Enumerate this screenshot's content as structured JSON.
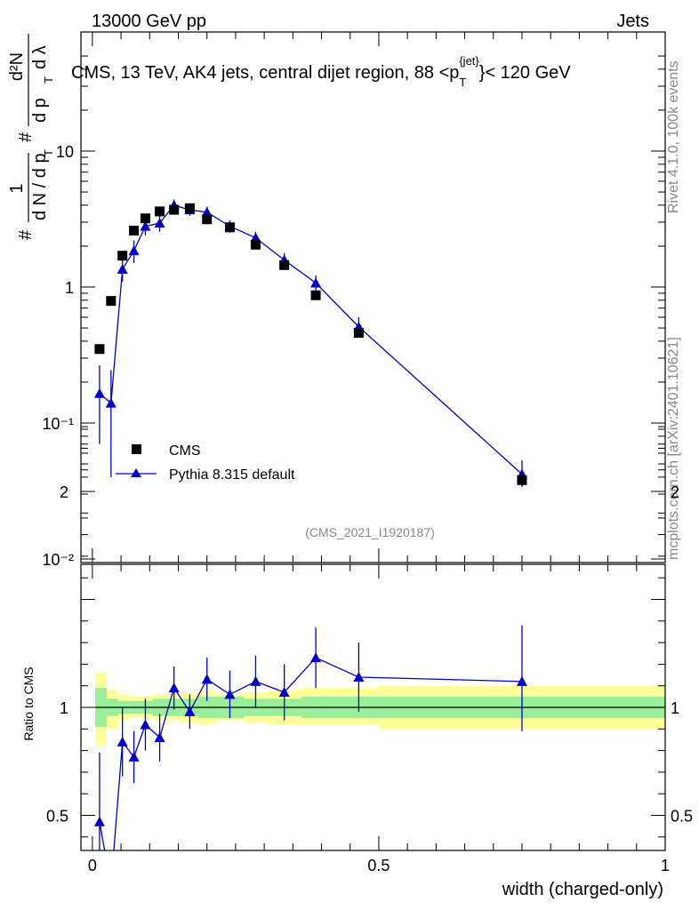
{
  "header": {
    "left": "13000 GeV pp",
    "right": "Jets"
  },
  "side": {
    "rivet": "Rivet 4.1.0,  100k events",
    "mcplots": "mcplots.cern.ch [arXiv:2401.10621]"
  },
  "colors": {
    "data": "#000000",
    "mc": "#0000cc",
    "band_inner": "#99ee99",
    "band_outer": "#ffff99"
  },
  "chart_data": [
    {
      "type": "scatter",
      "title": "CMS, 13 TeV, AK4 jets, central dijet region, 88 <p_T^{jet}> < 120 GeV",
      "title_parts": {
        "main": "CMS, 13 TeV, AK4 jets, central dijet region, 88 <p",
        "sub": "T",
        "sup": "{jet}",
        "end": "}< 120 GeV"
      },
      "ylabel": "1/dN/dp_T d²N/dp_T dλ",
      "ylabel_parts": {
        "hash": "#",
        "one": "1",
        "dN": "d N / d p",
        "T": "T",
        "d2N": "d²N",
        "dp": "d p",
        "dl": "d λ"
      },
      "yscale": "log",
      "ylim": [
        0.01,
        50
      ],
      "xlim": [
        -0.02,
        1.0
      ],
      "ytick_labels": [
        "10⁻²",
        "10⁻¹",
        "1",
        "10"
      ],
      "ytick_values": [
        0.01,
        0.1,
        1,
        10
      ],
      "watermark": "(CMS_2021_I1920187)",
      "legend": {
        "placement": "lower-left",
        "entries": [
          "CMS",
          "Pythia 8.315 default"
        ]
      },
      "series": [
        {
          "name": "CMS",
          "marker": "square",
          "x": [
            0.0125,
            0.0325,
            0.0525,
            0.0725,
            0.0925,
            0.1175,
            0.1425,
            0.17,
            0.2,
            0.24,
            0.285,
            0.335,
            0.39,
            0.465,
            0.75
          ],
          "y": [
            0.35,
            0.79,
            1.7,
            2.6,
            3.2,
            3.6,
            3.7,
            3.8,
            3.15,
            2.75,
            2.05,
            1.45,
            0.87,
            0.46,
            0.038
          ],
          "err": [
            0.02,
            0.03,
            0.08,
            0.1,
            0.12,
            0.14,
            0.14,
            0.15,
            0.12,
            0.1,
            0.08,
            0.06,
            0.04,
            0.025,
            0.004
          ]
        },
        {
          "name": "Pythia 8.315 default",
          "marker": "triangle",
          "x": [
            0.0125,
            0.0325,
            0.0525,
            0.0725,
            0.0925,
            0.1175,
            0.1425,
            0.17,
            0.2,
            0.24,
            0.285,
            0.335,
            0.39,
            0.465,
            0.75
          ],
          "y": [
            0.165,
            0.14,
            1.35,
            1.85,
            2.8,
            2.95,
            4.0,
            3.7,
            3.55,
            2.8,
            2.3,
            1.58,
            1.07,
            0.51,
            0.042
          ],
          "err_lo": [
            0.095,
            0.1,
            0.25,
            0.35,
            0.4,
            0.4,
            0.4,
            0.35,
            0.35,
            0.3,
            0.25,
            0.2,
            0.15,
            0.08,
            0.008
          ],
          "err_hi": [
            0.1,
            0.105,
            0.25,
            0.35,
            0.4,
            0.4,
            0.4,
            0.35,
            0.35,
            0.3,
            0.25,
            0.2,
            0.15,
            0.09,
            0.011
          ]
        }
      ]
    },
    {
      "type": "scatter",
      "ylabel": "Ratio to CMS",
      "xlabel": "width (charged-only)",
      "ylim": [
        0.35,
        2.35
      ],
      "xlim": [
        -0.02,
        1.0
      ],
      "ytick_labels": [
        "0.5",
        "1",
        "2"
      ],
      "ytick_values": [
        0.5,
        1,
        2
      ],
      "xtick_labels": [
        "0",
        "0.5",
        "1"
      ],
      "xtick_values": [
        0,
        0.5,
        1
      ],
      "bands": {
        "edges": [
          0.005,
          0.025,
          0.045,
          0.065,
          0.085,
          0.105,
          0.135,
          0.155,
          0.185,
          0.215,
          0.265,
          0.305,
          0.365,
          0.415,
          0.5,
          1.0
        ],
        "inner_lo": [
          0.91,
          0.96,
          0.97,
          0.97,
          0.97,
          0.96,
          0.96,
          0.96,
          0.95,
          0.95,
          0.96,
          0.96,
          0.95,
          0.95,
          0.95
        ],
        "inner_hi": [
          1.09,
          1.04,
          1.03,
          1.03,
          1.03,
          1.04,
          1.04,
          1.04,
          1.05,
          1.05,
          1.04,
          1.04,
          1.05,
          1.05,
          1.05
        ],
        "outer_lo": [
          0.82,
          0.9,
          0.94,
          0.95,
          0.95,
          0.94,
          0.94,
          0.93,
          0.92,
          0.94,
          0.93,
          0.92,
          0.92,
          0.92,
          0.9
        ],
        "outer_hi": [
          1.16,
          1.08,
          1.06,
          1.05,
          1.05,
          1.06,
          1.06,
          1.07,
          1.08,
          1.06,
          1.07,
          1.08,
          1.09,
          1.09,
          1.1
        ]
      },
      "series": [
        {
          "name": "Pythia 8.315 default / CMS",
          "marker": "triangle",
          "x": [
            0.0125,
            0.0525,
            0.0725,
            0.0925,
            0.1175,
            0.1425,
            0.17,
            0.2,
            0.24,
            0.285,
            0.335,
            0.39,
            0.465,
            0.75
          ],
          "y": [
            0.47,
            0.84,
            0.77,
            0.92,
            0.86,
            1.09,
            0.98,
            1.13,
            1.06,
            1.12,
            1.07,
            1.23,
            1.14,
            1.12
          ],
          "err_lo": [
            0.28,
            0.16,
            0.12,
            0.12,
            0.11,
            0.1,
            0.08,
            0.1,
            0.11,
            0.12,
            0.13,
            0.14,
            0.16,
            0.23
          ],
          "err_hi": [
            0.32,
            0.16,
            0.12,
            0.12,
            0.11,
            0.1,
            0.08,
            0.1,
            0.11,
            0.12,
            0.13,
            0.14,
            0.16,
            0.26
          ]
        }
      ]
    }
  ]
}
